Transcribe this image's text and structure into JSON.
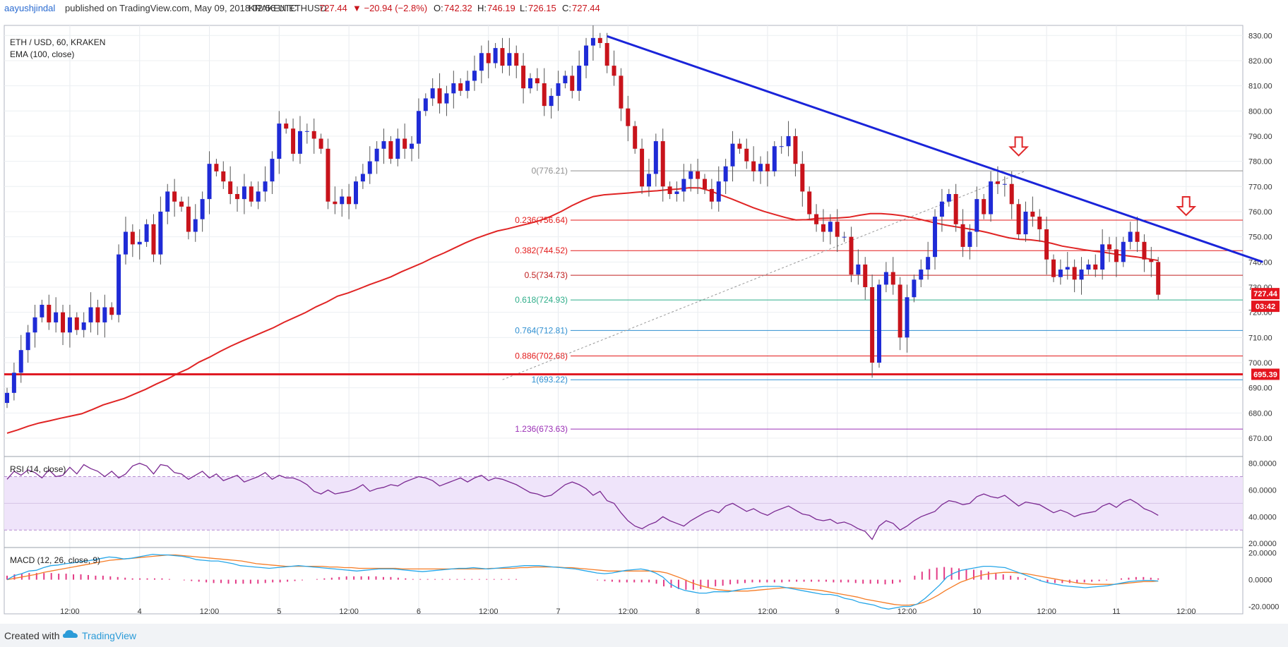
{
  "header": {
    "user": "aayushjindal",
    "published": "published on TradingView.com, May 09, 2018 02:56 UTC",
    "symbol": "KRAKEN:ETHUSD",
    "last": "727.44",
    "change": "▼ −20.94 (−2.8%)",
    "ohlc_o_label": "O:",
    "ohlc_o": "742.32",
    "ohlc_h_label": "H:",
    "ohlc_h": "746.19",
    "ohlc_l_label": "L:",
    "ohlc_l": "726.15",
    "ohlc_c_label": "C:",
    "ohlc_c": "727.44"
  },
  "legend": {
    "title": "ETH / USD, 60, KRAKEN",
    "ema": "EMA (100, close)"
  },
  "footer": {
    "created": "Created with",
    "brand": "TradingView"
  },
  "colors": {
    "bull": "#1f2bd6",
    "bear": "#c8131b",
    "ema": "#e02424",
    "trendline": "#1a24d9",
    "support": "#e01b24",
    "rsi_line": "#7b2a92",
    "rsi_band": "#efe4fa",
    "macd_line": "#26a6e8",
    "signal_line": "#f57c26",
    "hist": "#e33b86",
    "arrow": "#e0282a",
    "price_tag": "#e4151f"
  },
  "chart_data": [
    {
      "type": "candlestick",
      "title": "ETH / USD, 60, KRAKEN",
      "x_ticks": [
        "12:00",
        "4",
        "12:00",
        "5",
        "12:00",
        "6",
        "12:00",
        "7",
        "12:00",
        "8",
        "12:00",
        "9",
        "12:00",
        "10",
        "12:00",
        "11",
        "12:00"
      ],
      "y_ticks": [
        670,
        680,
        690,
        700,
        710,
        720,
        730,
        740,
        750,
        760,
        770,
        780,
        790,
        800,
        810,
        820,
        830
      ],
      "ylim": [
        663,
        834
      ],
      "closes": [
        688,
        696,
        705,
        712,
        718,
        723,
        716,
        720,
        712,
        718,
        713,
        716,
        722,
        716,
        722,
        719,
        743,
        752,
        747,
        748,
        755,
        743,
        760,
        768,
        764,
        762,
        752,
        757,
        765,
        779,
        776,
        772,
        767,
        765,
        770,
        764,
        768,
        772,
        781,
        795,
        793,
        783,
        792,
        792,
        789,
        785,
        764,
        763,
        766,
        763,
        772,
        775,
        780,
        785,
        788,
        781,
        789,
        785,
        787,
        800,
        805,
        809,
        803,
        807,
        811,
        808,
        812,
        816,
        823,
        819,
        825,
        818,
        823,
        818,
        809,
        813,
        811,
        802,
        806,
        811,
        814,
        808,
        818,
        826,
        829,
        827,
        818,
        814,
        801,
        794,
        785,
        770,
        775,
        788,
        770,
        767,
        768,
        773,
        776,
        773,
        769,
        764,
        772,
        778,
        787,
        785,
        780,
        776,
        779,
        776,
        786,
        786,
        790,
        779,
        768,
        759,
        755,
        752,
        756,
        750,
        750,
        735,
        739,
        730,
        700,
        731,
        736,
        731,
        710,
        726,
        733,
        737,
        742,
        758,
        764,
        767,
        755,
        746,
        752,
        765,
        759,
        772,
        771,
        771,
        763,
        751,
        760,
        758,
        753,
        741,
        734,
        737,
        738,
        733,
        737,
        739,
        737,
        747,
        745,
        740,
        748,
        752,
        748,
        741,
        740,
        727
      ],
      "ema100": [
        672.0,
        673.3,
        674.8,
        676.0,
        676.9,
        677.9,
        678.8,
        679.7,
        681.4,
        683.2,
        684.5,
        685.8,
        687.6,
        689.4,
        691.5,
        693.4,
        695.7,
        697.6,
        700.2,
        702.2,
        704.5,
        706.6,
        708.5,
        710.3,
        712.1,
        713.9,
        716.1,
        718.0,
        719.9,
        722.2,
        724.1,
        726.4,
        727.7,
        729.3,
        731.0,
        732.5,
        734.1,
        736.1,
        737.9,
        739.7,
        741.8,
        743.6,
        745.6,
        747.6,
        749.4,
        750.9,
        752.3,
        753.2,
        754.3,
        755.3,
        756.5,
        758.1,
        760.1,
        762.4,
        764.4,
        766.0,
        766.7,
        767.0,
        767.3,
        767.7,
        768.0,
        768.3,
        768.7,
        769.0,
        769.5,
        769.4,
        768.2,
        766.6,
        765.0,
        763.3,
        761.6,
        760.1,
        758.9,
        757.7,
        756.7,
        756.8,
        757.3,
        757.4,
        757.5,
        757.8,
        758.6,
        759.2,
        759.2,
        758.9,
        758.4,
        757.6,
        756.6,
        755.6,
        754.7,
        754.0,
        753.3,
        752.6,
        751.7,
        750.6,
        749.6,
        749.0,
        748.8,
        748.3,
        747.4,
        746.3,
        745.6,
        744.9,
        744.3,
        743.8,
        743.1,
        742.5,
        742.0,
        741.3,
        740.6
      ],
      "trendline": {
        "from": {
          "index": 86,
          "price": 829.7
        },
        "to": {
          "index": 180,
          "price": 740.0
        }
      },
      "support_level": 695.39,
      "fib_levels": [
        {
          "ratio": "0",
          "label": "0(776.21)",
          "price": 776.21
        },
        {
          "ratio": "0.236",
          "label": "0.236(756.64)",
          "price": 756.64
        },
        {
          "ratio": "0.382",
          "label": "0.382(744.52)",
          "price": 744.52
        },
        {
          "ratio": "0.5",
          "label": "0.5(734.73)",
          "price": 734.73
        },
        {
          "ratio": "0.618",
          "label": "0.618(724.93)",
          "price": 724.93
        },
        {
          "ratio": "0.764",
          "label": "0.764(712.81)",
          "price": 712.81
        },
        {
          "ratio": "0.886",
          "label": "0.886(702.68)",
          "price": 702.68
        },
        {
          "ratio": "1",
          "label": "1(693.22)",
          "price": 693.22
        },
        {
          "ratio": "1.236",
          "label": "1.236(673.63)",
          "price": 673.63
        }
      ],
      "price_tags": [
        {
          "label": "727.44",
          "price": 727.44
        },
        {
          "label": "03:42",
          "price": 722.4
        },
        {
          "label": "695.39",
          "price": 695.39
        }
      ],
      "arrows": [
        {
          "name": "arrow-high",
          "index": 87,
          "price": 840.5
        },
        {
          "name": "arrow-mid",
          "index": 145,
          "price": 782.3
        },
        {
          "name": "arrow-right",
          "index": 169,
          "price": 758.6
        }
      ]
    },
    {
      "type": "line",
      "title": "RSI (14, close)",
      "y_ticks": [
        "20.0000",
        "40.0000",
        "60.0000",
        "80.0000"
      ],
      "ylim": [
        18,
        84
      ],
      "bands": [
        30,
        70
      ],
      "values": [
        68,
        74,
        71,
        75,
        73,
        69,
        75,
        70,
        71,
        77,
        72,
        79,
        76,
        74,
        70,
        74,
        69,
        72,
        78,
        80,
        78,
        72,
        79,
        78,
        73,
        72,
        68,
        71,
        74,
        69,
        72,
        67,
        69,
        71,
        66,
        68,
        70,
        73,
        68,
        71,
        69,
        69,
        67,
        64,
        59,
        57,
        60,
        57,
        58,
        59,
        61,
        64,
        59,
        61,
        62,
        64,
        63,
        66,
        68,
        70,
        69,
        67,
        63,
        65,
        67,
        69,
        66,
        69,
        71,
        67,
        69,
        68,
        66,
        64,
        61,
        58,
        57,
        55,
        56,
        60,
        64,
        66,
        64,
        61,
        56,
        59,
        52,
        50,
        43,
        37,
        33,
        31,
        34,
        36,
        40,
        37,
        35,
        33,
        37,
        40,
        43,
        45,
        43,
        48,
        50,
        47,
        44,
        46,
        43,
        41,
        44,
        46,
        48,
        45,
        42,
        41,
        38,
        37,
        38,
        35,
        36,
        34,
        31,
        29,
        23,
        33,
        37,
        35,
        30,
        33,
        37,
        40,
        42,
        44,
        49,
        52,
        51,
        49,
        50,
        55,
        57,
        55,
        54,
        56,
        52,
        48,
        51,
        50,
        49,
        46,
        43,
        45,
        43,
        40,
        42,
        43,
        44,
        48,
        50,
        47,
        51,
        53,
        50,
        46,
        44,
        41
      ]
    },
    {
      "type": "line",
      "title": "MACD (12, 26, close, 9)",
      "y_ticks": [
        "-20.0000",
        "0.0000",
        "20.0000"
      ],
      "ylim": [
        -25,
        23
      ],
      "macd": [
        0,
        3,
        4.5,
        6.5,
        7,
        9,
        10.5,
        11,
        12,
        12.5,
        13.5,
        14,
        15,
        16,
        17,
        16.5,
        15.5,
        16,
        17,
        18,
        19,
        18.5,
        18.5,
        18,
        17.5,
        16.5,
        15,
        14.5,
        14,
        14,
        13,
        12,
        10.5,
        10,
        9.5,
        9,
        8.5,
        9,
        9.5,
        10,
        10.5,
        10,
        9.5,
        9,
        8.5,
        8,
        7.5,
        7,
        6.5,
        7,
        7.5,
        8,
        8,
        8,
        7.5,
        7,
        6.5,
        6,
        6.5,
        7,
        7.5,
        8,
        8.5,
        8.5,
        9,
        8.5,
        8,
        8.5,
        9,
        9.5,
        10,
        10.5,
        10.5,
        10.5,
        10,
        9.5,
        9,
        8.5,
        8,
        7,
        6,
        5,
        4.5,
        5,
        6,
        7,
        7.5,
        8,
        7,
        5,
        2,
        -3,
        -6,
        -8,
        -9,
        -10,
        -10,
        -9,
        -9,
        -9,
        -8,
        -7,
        -6.5,
        -5.5,
        -5,
        -5,
        -5,
        -6,
        -7,
        -8,
        -9,
        -10,
        -11,
        -11,
        -12,
        -14,
        -15,
        -17,
        -18,
        -19,
        -21,
        -22,
        -21,
        -20,
        -20,
        -18,
        -14,
        -9,
        -4,
        2,
        5,
        7,
        8,
        9,
        10,
        10,
        9.5,
        9,
        7,
        5,
        3,
        1,
        -1,
        -2.5,
        -3.5,
        -4.5,
        -5,
        -5.5,
        -6,
        -5.5,
        -5,
        -4.5,
        -3.5,
        -2.5,
        -1.5,
        -1,
        -0.5,
        -0.5,
        -1
      ],
      "signal": [
        0,
        1,
        2,
        3,
        4,
        5.5,
        6.5,
        7.5,
        8.5,
        9.5,
        10.5,
        11.5,
        12.5,
        13.5,
        14.5,
        15,
        15.5,
        16,
        16.5,
        17,
        17.5,
        18,
        18.5,
        18.5,
        18,
        17.5,
        17,
        16.5,
        16,
        15.5,
        15,
        14.5,
        14,
        13,
        12,
        11.5,
        11,
        10.5,
        10,
        10,
        10,
        10,
        10,
        10,
        9.5,
        9.5,
        9,
        9,
        8.5,
        8.5,
        8.5,
        8.5,
        8.5,
        8.5,
        8,
        8,
        8,
        8,
        8,
        8,
        8,
        8,
        8,
        8,
        8,
        8,
        8.5,
        8.5,
        8.5,
        8.5,
        9,
        9,
        9.5,
        9.5,
        9.5,
        9.5,
        9,
        9,
        8.5,
        8,
        7.5,
        7,
        6.5,
        6.5,
        6.5,
        6.5,
        6.5,
        6.5,
        6.5,
        6,
        5,
        3,
        1,
        -1.5,
        -3.5,
        -5,
        -6.5,
        -7.5,
        -8,
        -8.5,
        -8.5,
        -8.5,
        -8,
        -7.5,
        -7,
        -6.5,
        -6,
        -6,
        -6.5,
        -7,
        -7.5,
        -8,
        -9,
        -10,
        -11,
        -12,
        -13,
        -14.5,
        -15.5,
        -16.5,
        -17.5,
        -18.5,
        -19,
        -19,
        -18.5,
        -17,
        -14.5,
        -11.5,
        -8,
        -5,
        -2,
        0,
        2,
        3.5,
        4.5,
        5,
        5.5,
        5.5,
        5,
        4.5,
        3.5,
        2.5,
        1.5,
        0.5,
        -0.5,
        -1.5,
        -2.5,
        -3,
        -3.5,
        -3.5,
        -3.5,
        -3.5,
        -3,
        -2.5,
        -2,
        -1.5,
        -1.5,
        -1
      ],
      "histogram": [
        3,
        4,
        4.5,
        5,
        5,
        5,
        5,
        4.5,
        4.5,
        4,
        4,
        3.5,
        3,
        3,
        2.5,
        2,
        1.5,
        1,
        1,
        1,
        1,
        1,
        0.5,
        0,
        -0.5,
        -1,
        -1.5,
        -2,
        -2.5,
        -2.5,
        -3,
        -3,
        -3,
        -3,
        -3,
        -2.5,
        -2,
        -2,
        -1.5,
        -1,
        -0.5,
        0,
        0.5,
        1,
        1.5,
        2,
        2.5,
        2.5,
        2.5,
        2.5,
        2.5,
        2,
        2,
        1.5,
        1,
        0.5,
        0.5,
        0.5,
        0.5,
        0.5,
        0.5,
        0.5,
        0.5,
        0.5,
        0.5,
        0.5,
        0.5,
        0.5,
        0.5,
        0.5,
        0,
        0,
        0,
        0,
        0,
        0,
        0,
        0,
        0,
        0,
        -0.5,
        -1,
        -1.5,
        -2,
        -2,
        -2,
        -2,
        -2,
        -3,
        -5,
        -6,
        -7,
        -7.5,
        -7.5,
        -7,
        -6,
        -5,
        -4.5,
        -3.5,
        -3,
        -2.5,
        -2,
        -2,
        -2,
        -2,
        -2,
        -1.5,
        -1.5,
        -1.5,
        -1.5,
        -1.5,
        -1.5,
        -2,
        -2,
        -2,
        -2.5,
        -3,
        -3,
        -3,
        -3.5,
        -3,
        -2,
        0,
        3,
        6,
        8,
        9,
        9.5,
        9,
        8.5,
        8,
        7.5,
        7,
        6,
        5,
        4,
        3,
        2,
        1,
        0,
        -1,
        -2,
        -2.5,
        -2.5,
        -2.5,
        -2.5,
        -2,
        -1.5,
        -1,
        -0.5,
        0,
        1,
        1.5,
        2,
        2,
        1.5,
        1
      ]
    }
  ],
  "time_axis": {
    "labels": [
      {
        "text": "12:00",
        "index": 9
      },
      {
        "text": "4",
        "index": 19
      },
      {
        "text": "12:00",
        "index": 29
      },
      {
        "text": "5",
        "index": 39
      },
      {
        "text": "12:00",
        "index": 49
      },
      {
        "text": "6",
        "index": 59
      },
      {
        "text": "12:00",
        "index": 69
      },
      {
        "text": "7",
        "index": 79
      },
      {
        "text": "12:00",
        "index": 89
      },
      {
        "text": "8",
        "index": 99
      },
      {
        "text": "12:00",
        "index": 109
      },
      {
        "text": "9",
        "index": 119
      },
      {
        "text": "12:00",
        "index": 129
      },
      {
        "text": "10",
        "index": 139
      },
      {
        "text": "12:00",
        "index": 149
      },
      {
        "text": "11",
        "index": 159
      },
      {
        "text": "12:00",
        "index": 169
      }
    ]
  }
}
